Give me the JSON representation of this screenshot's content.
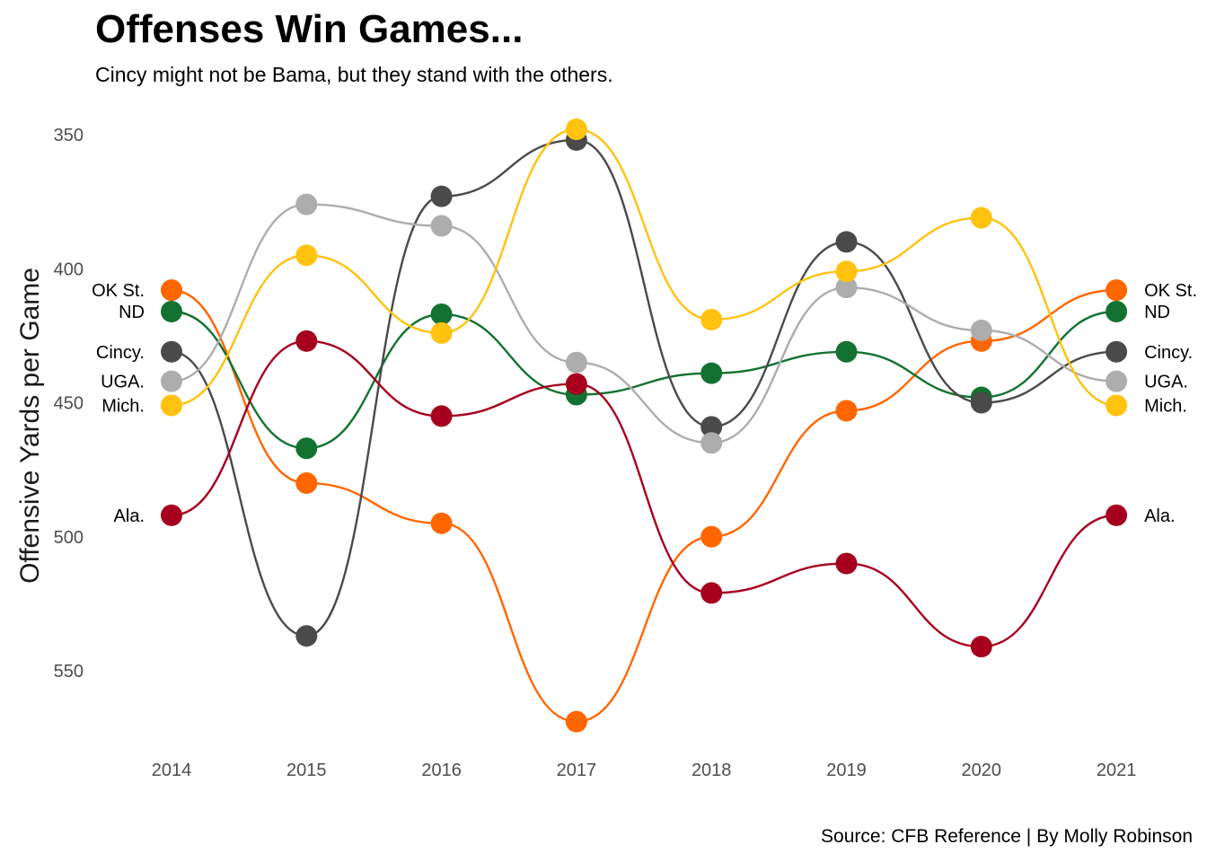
{
  "title": "Offenses Win Games...",
  "subtitle": "Cincy might not be Bama, but they stand with the others.",
  "caption": "Source: CFB Reference | By Molly Robinson",
  "chart_data": {
    "type": "line",
    "ylabel": "Offensive Yards per Game",
    "y_reversed": true,
    "ylim": [
      340,
      570
    ],
    "yticks": [
      350,
      400,
      450,
      500,
      550
    ],
    "grid": false,
    "legend": "none (labels at line ends)",
    "x": [
      2014,
      2015,
      2016,
      2017,
      2018,
      2019,
      2020,
      2021
    ],
    "series": [
      {
        "name": "OK St.",
        "color": "#FF6600",
        "values": [
          408,
          480,
          495,
          569,
          500,
          453,
          427,
          408
        ]
      },
      {
        "name": "ND",
        "color": "#137131",
        "values": [
          416,
          467,
          417,
          447,
          439,
          431,
          448,
          416
        ]
      },
      {
        "name": "Cincy.",
        "color": "#4A4A4A",
        "values": [
          431,
          537,
          373,
          352,
          459,
          390,
          450,
          431
        ]
      },
      {
        "name": "UGA.",
        "color": "#ADADAD",
        "values": [
          442,
          376,
          384,
          435,
          465,
          407,
          423,
          442
        ]
      },
      {
        "name": "Mich.",
        "color": "#FFC20E",
        "values": [
          451,
          395,
          424,
          348,
          419,
          401,
          381,
          451
        ]
      },
      {
        "name": "Ala.",
        "color": "#A6001E",
        "values": [
          492,
          427,
          455,
          443,
          521,
          510,
          541,
          492
        ]
      }
    ]
  }
}
